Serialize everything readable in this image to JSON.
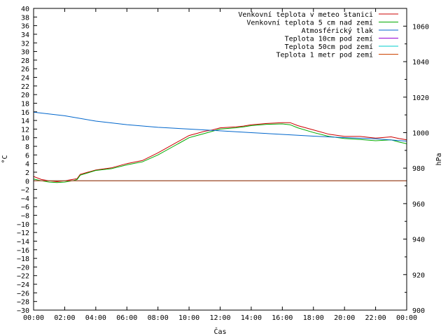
{
  "chart_data": {
    "type": "line",
    "xlabel": "Čas",
    "ylabel": "°C",
    "y2label": "hPa",
    "x_ticks": [
      "00:00",
      "02:00",
      "04:00",
      "06:00",
      "08:00",
      "10:00",
      "12:00",
      "14:00",
      "16:00",
      "18:00",
      "20:00",
      "22:00",
      "00:00"
    ],
    "xlim_hours": [
      0,
      24
    ],
    "ylim": [
      -30,
      40
    ],
    "y_tick_step": 2,
    "y2lim": [
      900,
      1070
    ],
    "y2_ticks": [
      900,
      920,
      940,
      960,
      980,
      1000,
      1020,
      1040,
      1060
    ],
    "grid": false,
    "legend_position": "top-right",
    "series": [
      {
        "name": "Venkovní teplota v meteo stanici",
        "color": "#cc0000",
        "axis": "y",
        "x": [
          0,
          0.5,
          1,
          1.5,
          2,
          2.5,
          2.8,
          3,
          4,
          5,
          6,
          7,
          8,
          9,
          10,
          10.5,
          11,
          11.5,
          12,
          13,
          13.5,
          14,
          15,
          16,
          16.5,
          17,
          18,
          19,
          20,
          21,
          22,
          23,
          23.5,
          24
        ],
        "values": [
          1.0,
          0.3,
          0.0,
          -0.2,
          0.0,
          0.3,
          0.5,
          1.5,
          2.5,
          3.0,
          4.0,
          4.7,
          6.5,
          8.5,
          10.5,
          11.0,
          11.5,
          11.8,
          12.3,
          12.5,
          12.7,
          13.0,
          13.3,
          13.5,
          13.5,
          12.8,
          11.8,
          10.8,
          10.3,
          10.3,
          9.9,
          10.2,
          9.8,
          9.5
        ]
      },
      {
        "name": "Venkovní teplota 5 cm nad zemí",
        "color": "#00aa00",
        "axis": "y",
        "x": [
          0,
          0.5,
          1,
          1.5,
          2,
          2.5,
          2.8,
          3,
          4,
          5,
          6,
          7,
          8,
          9,
          10,
          10.5,
          11,
          11.5,
          12,
          13,
          13.5,
          14,
          15,
          16,
          16.5,
          17,
          18,
          19,
          20,
          21,
          22,
          23,
          23.5,
          24
        ],
        "values": [
          0.4,
          0.0,
          -0.3,
          -0.4,
          -0.3,
          0.0,
          0.3,
          1.3,
          2.4,
          2.8,
          3.7,
          4.4,
          6.0,
          8.0,
          10.0,
          10.5,
          11.0,
          11.5,
          12.0,
          12.3,
          12.5,
          12.8,
          13.1,
          13.2,
          13.0,
          12.3,
          11.2,
          10.3,
          9.8,
          9.6,
          9.3,
          9.5,
          9.0,
          8.6
        ]
      },
      {
        "name": "Atmosférický tlak",
        "color": "#0066cc",
        "axis": "y2",
        "x": [
          0,
          2,
          4,
          6,
          8,
          10,
          12,
          14,
          16,
          18,
          20,
          22,
          24
        ],
        "values": [
          1011.5,
          1009.5,
          1006.5,
          1004.5,
          1003.0,
          1002.0,
          1001.0,
          1000.0,
          999.0,
          998.0,
          997.2,
          996.5,
          995.2
        ]
      },
      {
        "name": "Teplota 10cm pod zemí",
        "color": "#9400d3",
        "axis": "y",
        "x": [
          0,
          24
        ],
        "values": [
          0,
          0
        ]
      },
      {
        "name": "Teplota 50cm pod zemí",
        "color": "#00cccc",
        "axis": "y",
        "x": [
          0,
          24
        ],
        "values": [
          0,
          0
        ]
      },
      {
        "name": "Teplota 1 metr pod zemí",
        "color": "#cc4400",
        "axis": "y",
        "x": [
          0,
          24
        ],
        "values": [
          0,
          0
        ]
      }
    ]
  }
}
